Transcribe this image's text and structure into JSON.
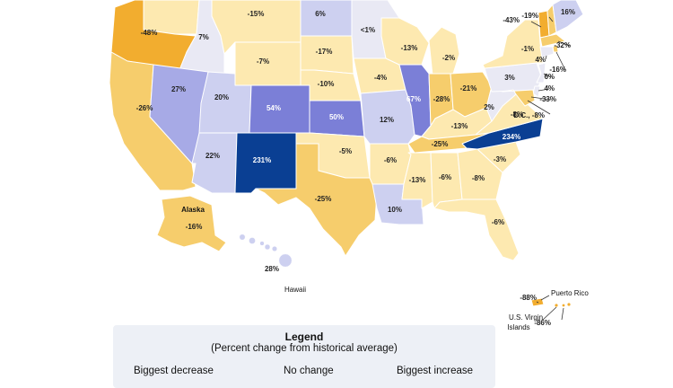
{
  "map": {
    "colors": {
      "dark_orange": "#f2ad2f",
      "orange": "#f6cd6c",
      "light_orange": "#fde9b0",
      "pale": "#e9e9f4",
      "light_blue": "#cdd0f0",
      "mid_blue": "#a7aae6",
      "blue": "#7b7fd7",
      "dark_blue": "#0a3f93",
      "background": "#ffffff"
    },
    "states": [
      {
        "id": "WA",
        "label": "",
        "color": "light_orange"
      },
      {
        "id": "OR",
        "label": "-48%",
        "color": "dark_orange"
      },
      {
        "id": "CA",
        "label": "-26%",
        "color": "orange"
      },
      {
        "id": "ID",
        "label": "7%",
        "color": "pale"
      },
      {
        "id": "NV",
        "label": "27%",
        "color": "mid_blue"
      },
      {
        "id": "MT",
        "label": "-15%",
        "color": "light_orange"
      },
      {
        "id": "WY",
        "label": "-7%",
        "color": "light_orange"
      },
      {
        "id": "UT",
        "label": "20%",
        "color": "light_blue"
      },
      {
        "id": "AZ",
        "label": "22%",
        "color": "light_blue"
      },
      {
        "id": "CO",
        "label": "54%",
        "color": "blue"
      },
      {
        "id": "NM",
        "label": "231%",
        "color": "dark_blue"
      },
      {
        "id": "ND",
        "label": "6%",
        "color": "light_blue"
      },
      {
        "id": "SD",
        "label": "-17%",
        "color": "light_orange"
      },
      {
        "id": "NE",
        "label": "-10%",
        "color": "light_orange"
      },
      {
        "id": "KS",
        "label": "50%",
        "color": "blue"
      },
      {
        "id": "OK",
        "label": "-5%",
        "color": "light_orange"
      },
      {
        "id": "TX",
        "label": "-25%",
        "color": "orange"
      },
      {
        "id": "MN",
        "label": "<1%",
        "color": "pale"
      },
      {
        "id": "IA",
        "label": "-4%",
        "color": "light_orange"
      },
      {
        "id": "MO",
        "label": "12%",
        "color": "light_blue"
      },
      {
        "id": "AR",
        "label": "-6%",
        "color": "light_orange"
      },
      {
        "id": "LA",
        "label": "10%",
        "color": "light_blue"
      },
      {
        "id": "WI",
        "label": "-13%",
        "color": "light_orange"
      },
      {
        "id": "IL",
        "label": "67%",
        "color": "blue"
      },
      {
        "id": "MI",
        "label": "-2%",
        "color": "light_orange"
      },
      {
        "id": "IN",
        "label": "-28%",
        "color": "orange"
      },
      {
        "id": "OH",
        "label": "-21%",
        "color": "orange"
      },
      {
        "id": "KY",
        "label": "-13%",
        "color": "light_orange"
      },
      {
        "id": "TN",
        "label": "-25%",
        "color": "orange"
      },
      {
        "id": "MS",
        "label": "-13%",
        "color": "light_orange"
      },
      {
        "id": "AL",
        "label": "-6%",
        "color": "light_orange"
      },
      {
        "id": "GA",
        "label": "-8%",
        "color": "light_orange"
      },
      {
        "id": "FL",
        "label": "-6%",
        "color": "light_orange"
      },
      {
        "id": "SC",
        "label": "-3%",
        "color": "light_orange"
      },
      {
        "id": "NC",
        "label": "234%",
        "color": "dark_blue"
      },
      {
        "id": "VA",
        "label": "-8%",
        "color": "light_orange"
      },
      {
        "id": "WV",
        "label": "2%",
        "color": "pale"
      },
      {
        "id": "PA",
        "label": "3%",
        "color": "pale"
      },
      {
        "id": "NY",
        "label": "-1%",
        "color": "light_orange"
      },
      {
        "id": "VT",
        "label": "-43%",
        "color": "dark_orange"
      },
      {
        "id": "NH",
        "label": "-19%",
        "color": "orange"
      },
      {
        "id": "ME",
        "label": "16%",
        "color": "light_blue"
      },
      {
        "id": "MA",
        "label": "-32%",
        "color": "orange"
      },
      {
        "id": "RI",
        "label": "-16%",
        "color": "orange"
      },
      {
        "id": "CT",
        "label": "4%",
        "color": "pale"
      },
      {
        "id": "NJ",
        "label": "6%",
        "color": "pale"
      },
      {
        "id": "DE",
        "label": "4%",
        "color": "pale"
      },
      {
        "id": "MD",
        "label": "-33%",
        "color": "orange"
      },
      {
        "id": "DC",
        "label": "D.C., -8%",
        "color": "light_orange"
      },
      {
        "id": "AK",
        "label": "-16%",
        "name": "Alaska",
        "color": "orange"
      },
      {
        "id": "HI",
        "label": "28%",
        "name": "Hawaii",
        "color": "light_blue"
      },
      {
        "id": "PR",
        "label": "-88%",
        "name": "Puerto Rico",
        "color": "dark_orange"
      },
      {
        "id": "VI",
        "label": "-86%",
        "name": "U.S. Virgin Islands",
        "color": "dark_orange"
      }
    ]
  },
  "legend": {
    "title": "Legend",
    "subtitle": "(Percent change from historical average)",
    "low_label": "Biggest decrease",
    "mid_label": "No change",
    "high_label": "Biggest increase"
  }
}
